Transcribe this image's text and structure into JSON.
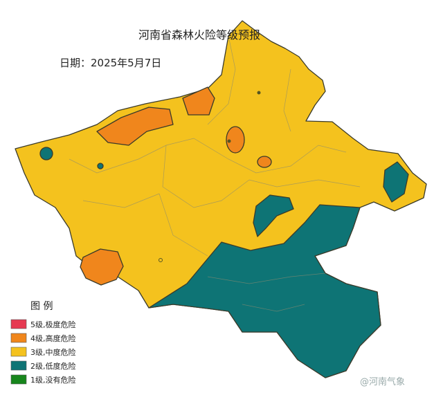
{
  "header": {
    "title": "河南省森林火险等级预报",
    "date": "日期：2025年5月7日"
  },
  "legend": {
    "title": "图  例",
    "items": [
      {
        "label": "5级,极度危险",
        "color": "#e63a52"
      },
      {
        "label": "4级,高度危险",
        "color": "#f0861c"
      },
      {
        "label": "3级,中度危险",
        "color": "#f4c21e"
      },
      {
        "label": "2级,低度危险",
        "color": "#0e7475"
      },
      {
        "label": "1级,没有危险",
        "color": "#17861c"
      }
    ]
  },
  "watermark": "@河南气象"
}
